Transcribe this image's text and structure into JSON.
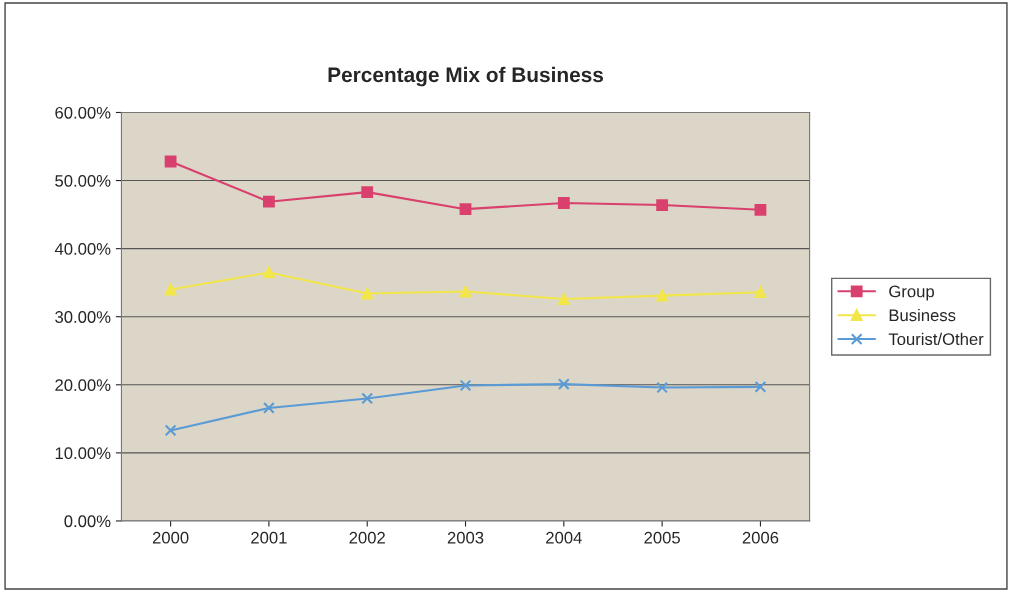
{
  "chart_data": {
    "type": "line",
    "title": "Percentage Mix of Business",
    "categories": [
      "2000",
      "2001",
      "2002",
      "2003",
      "2004",
      "2005",
      "2006"
    ],
    "series": [
      {
        "name": "Group",
        "color": "#d9406e",
        "marker": "square",
        "values": [
          52.8,
          46.9,
          48.3,
          45.8,
          46.7,
          46.4,
          45.7
        ]
      },
      {
        "name": "Business",
        "color": "#f2e64a",
        "marker": "triangle",
        "values": [
          34.0,
          36.5,
          33.4,
          33.7,
          32.6,
          33.1,
          33.6
        ]
      },
      {
        "name": "Tourist/Other",
        "color": "#5b9bd5",
        "marker": "cross",
        "values": [
          13.3,
          16.6,
          18.0,
          19.9,
          20.1,
          19.6,
          19.7
        ]
      }
    ],
    "ylim": [
      0,
      60
    ],
    "yticks": [
      {
        "value": 0,
        "label": "0.00%"
      },
      {
        "value": 10,
        "label": "10.00%"
      },
      {
        "value": 20,
        "label": "20.00%"
      },
      {
        "value": 30,
        "label": "30.00%"
      },
      {
        "value": 40,
        "label": "40.00%"
      },
      {
        "value": 50,
        "label": "50.00%"
      },
      {
        "value": 60,
        "label": "60.00%"
      }
    ],
    "grid": "y",
    "legend": "right",
    "line_style": "solid"
  }
}
